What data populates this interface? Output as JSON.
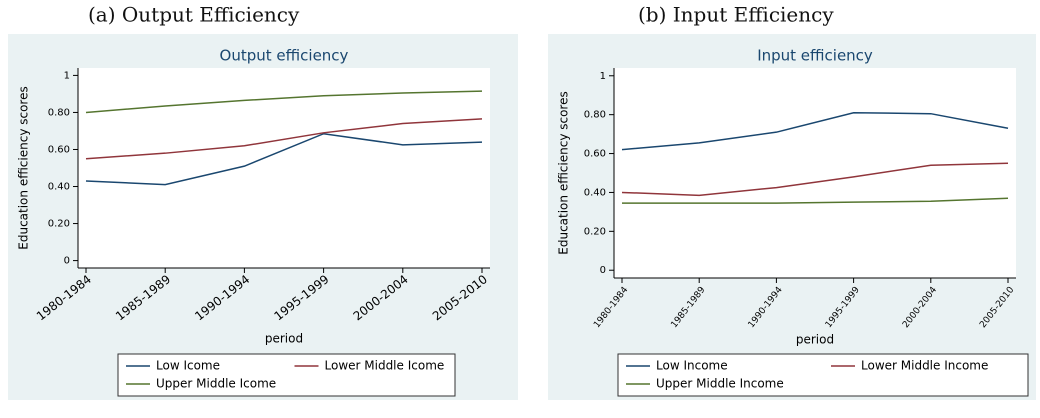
{
  "captions": [
    "(a)   Output Efficiency",
    "(b) Input Efficiency"
  ],
  "chart_data": [
    {
      "type": "line",
      "title": "Output efficiency",
      "x_label": "period",
      "y_label": "Education  efficiency scores",
      "categories": [
        "1980-1984",
        "1985-1989",
        "1990-1994",
        "1995-1999",
        "2000-2004",
        "2005-2010"
      ],
      "series": [
        {
          "name": "Low Icome",
          "color": "#1a476f",
          "values": [
            0.43,
            0.41,
            0.51,
            0.685,
            0.625,
            0.64
          ]
        },
        {
          "name": "Lower Middle Icome",
          "color": "#90353b",
          "values": [
            0.55,
            0.58,
            0.62,
            0.69,
            0.74,
            0.765
          ]
        },
        {
          "name": "Upper Middle Icome",
          "color": "#55752f",
          "values": [
            0.8,
            0.835,
            0.865,
            0.89,
            0.905,
            0.915
          ]
        }
      ],
      "ylim": [
        -0.04,
        1.04
      ],
      "yticks": [
        0,
        {
          "value": 0.2,
          "label": "0.20"
        },
        {
          "value": 0.4,
          "label": "0.40"
        },
        {
          "value": 0.6,
          "label": "0.60"
        },
        {
          "value": 0.8,
          "label": "0.80"
        },
        1
      ]
    },
    {
      "type": "line",
      "title": "Input efficiency",
      "x_label": "period",
      "y_label": "Education  efficiency scores",
      "categories": [
        "1980-1984",
        "1985-1989",
        "1990-1994",
        "1995-1999",
        "2000-2004",
        "2005-2010"
      ],
      "series": [
        {
          "name": "Low Income",
          "color": "#1a476f",
          "values": [
            0.62,
            0.655,
            0.71,
            0.81,
            0.805,
            0.73
          ]
        },
        {
          "name": "Lower Middle Income",
          "color": "#90353b",
          "values": [
            0.4,
            0.385,
            0.425,
            0.48,
            0.54,
            0.55
          ]
        },
        {
          "name": "Upper Middle Income",
          "color": "#55752f",
          "values": [
            0.345,
            0.345,
            0.345,
            0.35,
            0.355,
            0.37
          ]
        }
      ],
      "ylim": [
        -0.04,
        1.04
      ],
      "yticks": [
        0,
        {
          "value": 0.2,
          "label": "0.20"
        },
        {
          "value": 0.4,
          "label": "0.40"
        },
        {
          "value": 0.6,
          "label": "0.60"
        },
        {
          "value": 0.8,
          "label": "0.80"
        },
        1
      ]
    }
  ]
}
